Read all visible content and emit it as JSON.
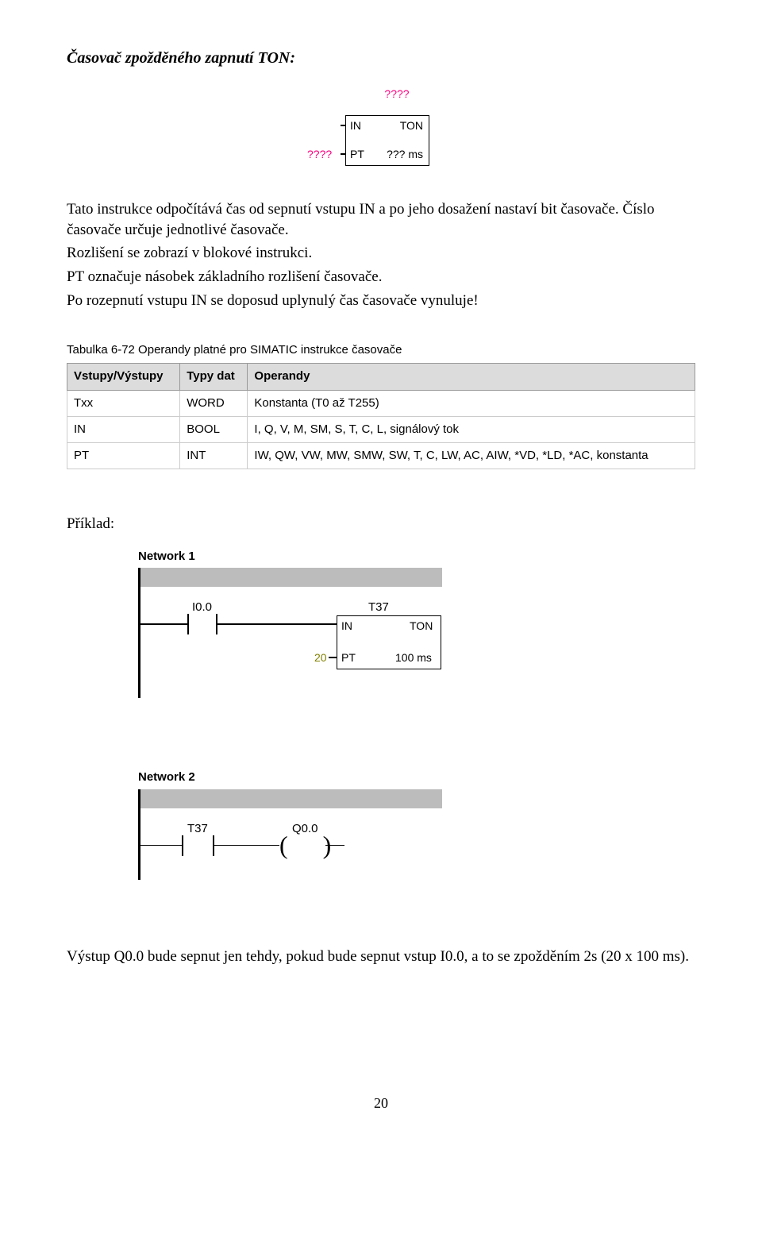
{
  "heading": "Časovač zpožděného zapnutí TON:",
  "ton_diagram": {
    "top_label": "????",
    "in_label": "IN",
    "ton_label": "TON",
    "pt_label": "PT",
    "ms_label": "??? ms",
    "left_pt": "????"
  },
  "paragraphs": {
    "p1": "Tato instrukce odpočítává čas od sepnutí vstupu IN a po jeho dosažení nastaví bit časovače. Číslo časovače určuje jednotlivé časovače.",
    "p2": "Rozlišení se zobrazí v blokové instrukci.",
    "p3": "PT označuje násobek základního rozlišení časovače.",
    "p4": "Po rozepnutí vstupu IN se doposud uplynulý čas časovače vynuluje!"
  },
  "table": {
    "caption": "Tabulka 6-72 Operandy platné pro SIMATIC instrukce časovače",
    "headers": [
      "Vstupy/Výstupy",
      "Typy dat",
      "Operandy"
    ],
    "rows": [
      [
        "Txx",
        "WORD",
        "Konstanta (T0 až T255)"
      ],
      [
        "IN",
        "BOOL",
        "I, Q, V, M, SM, S, T, C, L, signálový tok"
      ],
      [
        "PT",
        "INT",
        "IW, QW, VW, MW, SMW, SW, T, C, LW, AC, AIW, *VD, *LD, *AC, konstanta"
      ]
    ]
  },
  "example_label": "Příklad:",
  "network1": {
    "title": "Network 1",
    "contact_label": "I0.0",
    "box_top": "T37",
    "in": "IN",
    "ton": "TON",
    "pt": "PT",
    "ms": "100 ms",
    "pt_value": "20"
  },
  "network2": {
    "title": "Network 2",
    "contact_label": "T37",
    "coil_label": "Q0.0"
  },
  "footer": "Výstup Q0.0 bude sepnut jen tehdy, pokud bude sepnut vstup I0.0, a to se zpožděním 2s (20 x 100 ms).",
  "page_number": "20"
}
